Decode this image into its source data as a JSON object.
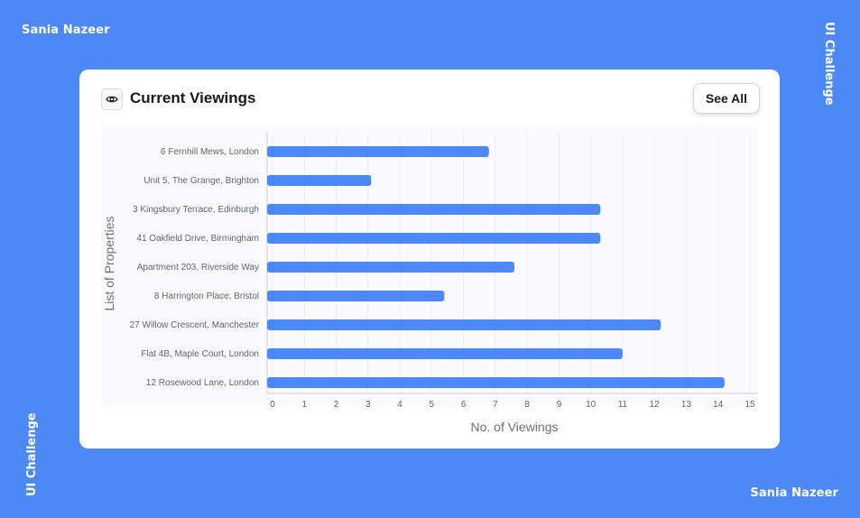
{
  "brand": {
    "name_top": "Sania Nazeer",
    "name_bottom": "Sania Nazeer",
    "tag_right": "UI Challenge",
    "tag_left": "UI Challenge"
  },
  "card": {
    "title": "Current Viewings",
    "see_all_label": "See All",
    "icon": "eye-icon"
  },
  "colors": {
    "background": "#4d89f6",
    "bar": "#4d89f6",
    "card": "#ffffff"
  },
  "chart_data": {
    "type": "bar",
    "orientation": "horizontal",
    "categories": [
      "6 Fernhill Mews, London",
      "Unit 5, The Grange, Brighton",
      "3 Kingsbury Terrace, Edinburgh",
      "41 Oakfield Drive, Birmingham",
      "Apartment 203, Riverside Way",
      "8 Harrington Place, Bristol",
      "27 Willow Crescent, Manchester",
      "Flat 4B, Maple Court, London",
      "12 Rosewood Lane, London"
    ],
    "values": [
      6.8,
      3.1,
      10.3,
      10.3,
      7.6,
      5.4,
      12.2,
      11.0,
      14.2
    ],
    "xlabel": "No. of Viewings",
    "ylabel": "List of Properties",
    "xlim": [
      0,
      15
    ],
    "xticks": [
      "0",
      "1",
      "2",
      "3",
      "4",
      "5",
      "6",
      "7",
      "8",
      "9",
      "10",
      "11",
      "12",
      "13",
      "14",
      "15"
    ],
    "grid": "vertical"
  }
}
